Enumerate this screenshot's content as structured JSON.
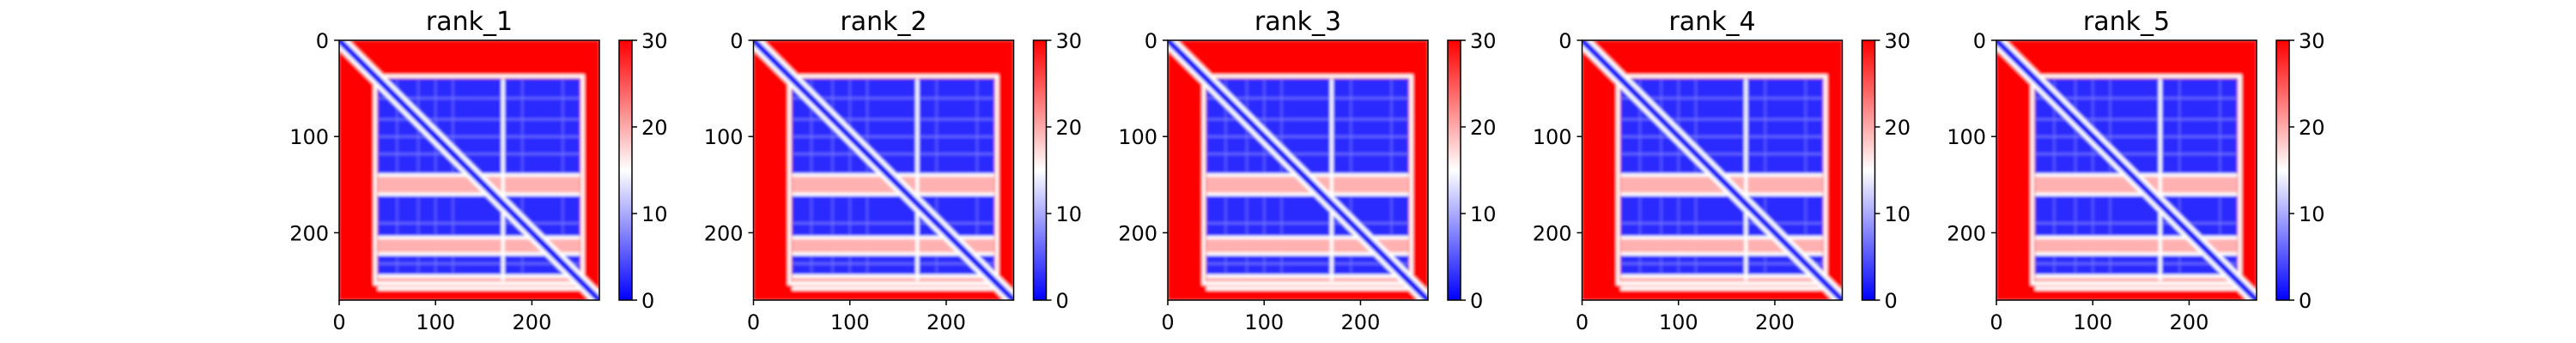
{
  "chart_data": [
    {
      "type": "heatmap",
      "title": "rank_1",
      "matrix_size": 270,
      "xlim": [
        0,
        270
      ],
      "ylim": [
        270,
        0
      ],
      "x_ticks": [
        0,
        100,
        200
      ],
      "y_ticks": [
        0,
        100,
        200
      ],
      "colorbar": {
        "range": [
          0,
          30
        ],
        "ticks": [
          0,
          10,
          20,
          30
        ],
        "colors": [
          "#0000ff",
          "#ffffff",
          "#ff0000"
        ]
      },
      "gaps": [
        [
          140,
          160
        ],
        [
          205,
          222
        ],
        [
          245,
          258
        ]
      ],
      "low_block": [
        40,
        250
      ]
    },
    {
      "type": "heatmap",
      "title": "rank_2",
      "matrix_size": 270,
      "xlim": [
        0,
        270
      ],
      "ylim": [
        270,
        0
      ],
      "x_ticks": [
        0,
        100,
        200
      ],
      "y_ticks": [
        0,
        100,
        200
      ],
      "colorbar": {
        "range": [
          0,
          30
        ],
        "ticks": [
          0,
          10,
          20,
          30
        ],
        "colors": [
          "#0000ff",
          "#ffffff",
          "#ff0000"
        ]
      },
      "gaps": [
        [
          140,
          160
        ],
        [
          205,
          222
        ],
        [
          245,
          258
        ]
      ],
      "low_block": [
        40,
        250
      ]
    },
    {
      "type": "heatmap",
      "title": "rank_3",
      "matrix_size": 270,
      "xlim": [
        0,
        270
      ],
      "ylim": [
        270,
        0
      ],
      "x_ticks": [
        0,
        100,
        200
      ],
      "y_ticks": [
        0,
        100,
        200
      ],
      "colorbar": {
        "range": [
          0,
          30
        ],
        "ticks": [
          0,
          10,
          20,
          30
        ],
        "colors": [
          "#0000ff",
          "#ffffff",
          "#ff0000"
        ]
      },
      "gaps": [
        [
          140,
          160
        ],
        [
          205,
          222
        ],
        [
          245,
          258
        ]
      ],
      "low_block": [
        40,
        250
      ]
    },
    {
      "type": "heatmap",
      "title": "rank_4",
      "matrix_size": 270,
      "xlim": [
        0,
        270
      ],
      "ylim": [
        270,
        0
      ],
      "x_ticks": [
        0,
        100,
        200
      ],
      "y_ticks": [
        0,
        100,
        200
      ],
      "colorbar": {
        "range": [
          0,
          30
        ],
        "ticks": [
          0,
          10,
          20,
          30
        ],
        "colors": [
          "#0000ff",
          "#ffffff",
          "#ff0000"
        ]
      },
      "gaps": [
        [
          140,
          160
        ],
        [
          205,
          222
        ],
        [
          245,
          258
        ]
      ],
      "low_block": [
        40,
        250
      ]
    },
    {
      "type": "heatmap",
      "title": "rank_5",
      "matrix_size": 270,
      "xlim": [
        0,
        270
      ],
      "ylim": [
        270,
        0
      ],
      "x_ticks": [
        0,
        100,
        200
      ],
      "y_ticks": [
        0,
        100,
        200
      ],
      "colorbar": {
        "range": [
          0,
          30
        ],
        "ticks": [
          0,
          10,
          20,
          30
        ],
        "colors": [
          "#0000ff",
          "#ffffff",
          "#ff0000"
        ]
      },
      "gaps": [
        [
          140,
          160
        ],
        [
          205,
          222
        ],
        [
          245,
          258
        ]
      ],
      "low_block": [
        40,
        250
      ]
    }
  ]
}
